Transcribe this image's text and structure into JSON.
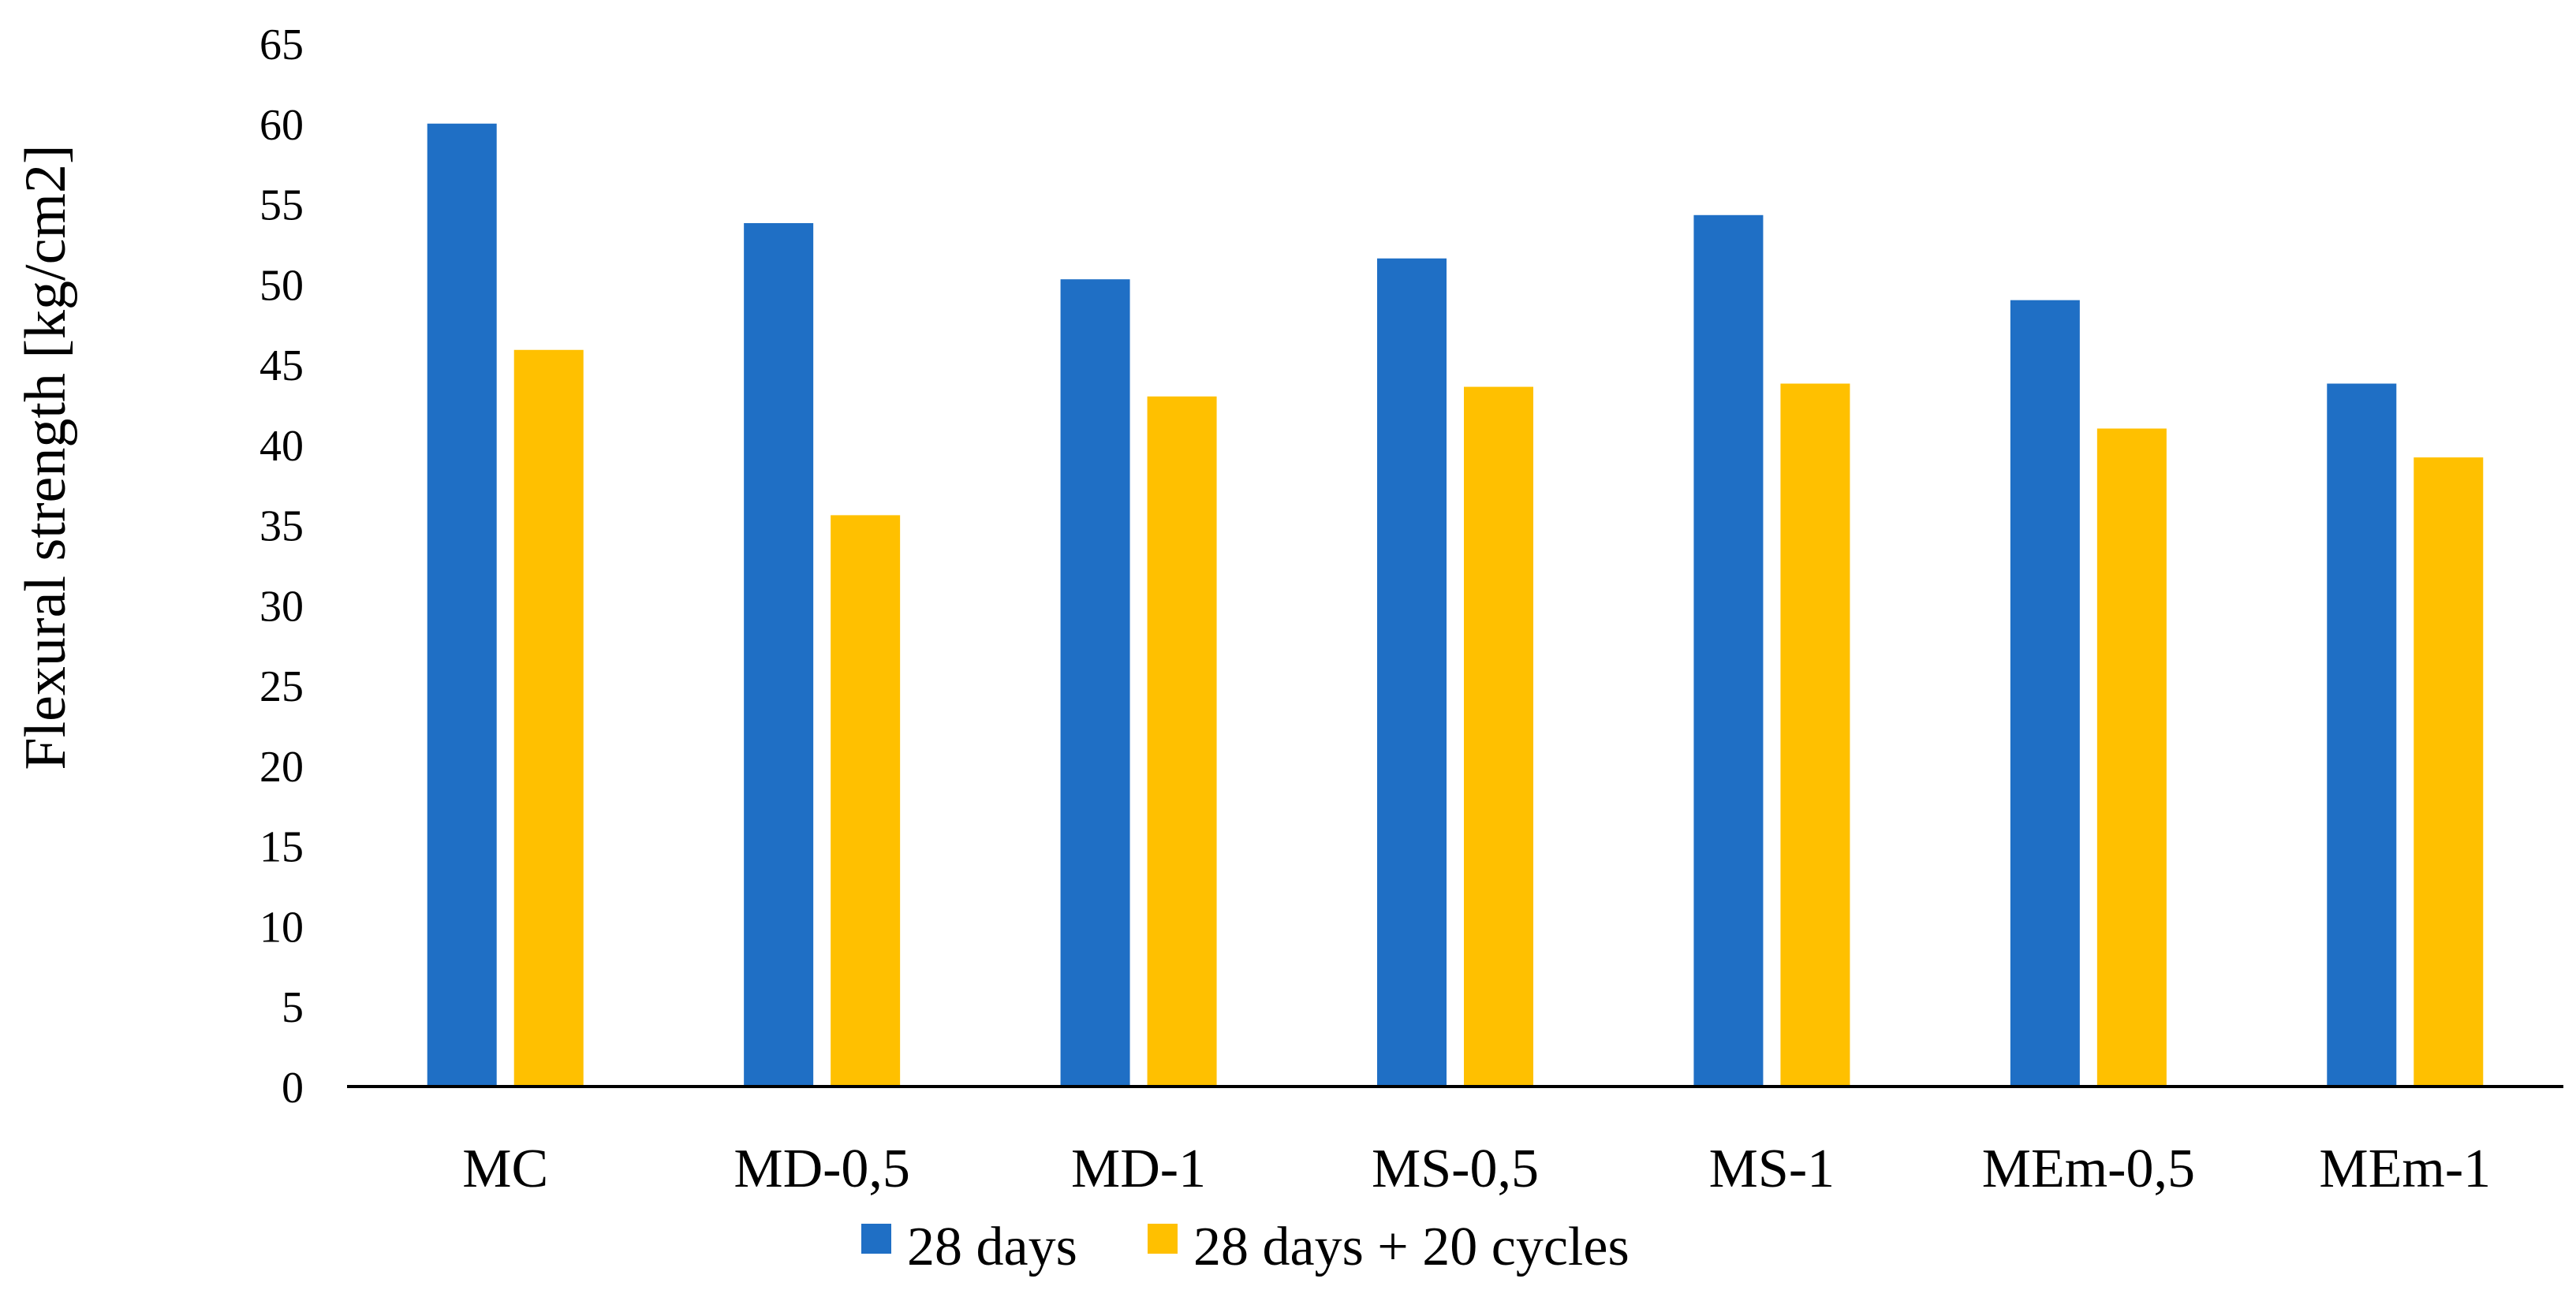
{
  "chart_data": {
    "type": "bar",
    "title": "",
    "xlabel": "",
    "ylabel": "Flexural strength [kg/cm2]",
    "ylim": [
      0,
      65
    ],
    "yticks": [
      "0",
      "5",
      "10",
      "15",
      "20",
      "25",
      "30",
      "35",
      "40",
      "45",
      "50",
      "55",
      "60",
      "65"
    ],
    "grid": false,
    "legend_position": "bottom",
    "categories": [
      "MC",
      "MD-0,5",
      "MD-1",
      "MS-0,5",
      "MS-1",
      "MEm-0,5",
      "MEm-1"
    ],
    "series": [
      {
        "name": "28 days",
        "color": "#1f6fc5",
        "values": [
          60,
          53.8,
          50.3,
          51.6,
          54.3,
          49,
          43.8
        ]
      },
      {
        "name": "28 days + 20 cycles",
        "color": "#ffc000",
        "values": [
          45.9,
          35.6,
          43,
          43.6,
          43.8,
          41,
          39.2
        ]
      }
    ]
  }
}
